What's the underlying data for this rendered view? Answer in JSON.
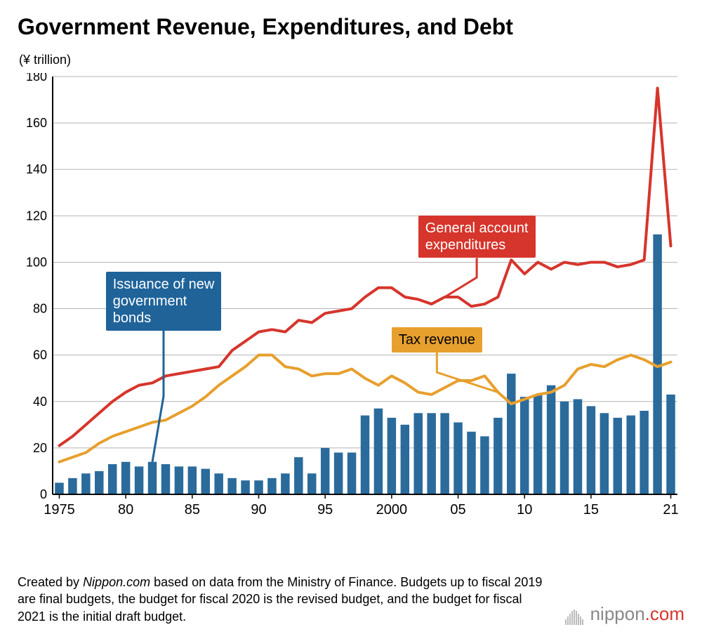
{
  "title": "Government Revenue, Expenditures, and Debt",
  "y_unit_label": "(¥ trillion)",
  "chart": {
    "type": "combo-bar-line",
    "background_color": "#ffffff",
    "grid_color": "#b5b5b5",
    "axis_color": "#000000",
    "ylim": [
      0,
      180
    ],
    "ytick_step": 20,
    "yticks": [
      0,
      20,
      40,
      60,
      80,
      100,
      120,
      140,
      160,
      180
    ],
    "years": [
      1975,
      1976,
      1977,
      1978,
      1979,
      1980,
      1981,
      1982,
      1983,
      1984,
      1985,
      1986,
      1987,
      1988,
      1989,
      1990,
      1991,
      1992,
      1993,
      1994,
      1995,
      1996,
      1997,
      1998,
      1999,
      2000,
      2001,
      2002,
      2003,
      2004,
      2005,
      2006,
      2007,
      2008,
      2009,
      2010,
      2011,
      2012,
      2013,
      2014,
      2015,
      2016,
      2017,
      2018,
      2019,
      2020,
      2021
    ],
    "xticks": [
      {
        "year": 1975,
        "label": "1975"
      },
      {
        "year": 1980,
        "label": "80"
      },
      {
        "year": 1985,
        "label": "85"
      },
      {
        "year": 1990,
        "label": "90"
      },
      {
        "year": 1995,
        "label": "95"
      },
      {
        "year": 2000,
        "label": "2000"
      },
      {
        "year": 2005,
        "label": "05"
      },
      {
        "year": 2010,
        "label": "10"
      },
      {
        "year": 2015,
        "label": "15"
      },
      {
        "year": 2021,
        "label": "21"
      }
    ],
    "series": {
      "bonds": {
        "label": "Issuance of new government bonds",
        "type": "bar",
        "color": "#2a6b9c",
        "bar_width_ratio": 0.66,
        "values": [
          5,
          7,
          9,
          10,
          13,
          14,
          12,
          14,
          13,
          12,
          12,
          11,
          9,
          7,
          6,
          6,
          7,
          9,
          16,
          9,
          20,
          18,
          18,
          34,
          37,
          33,
          30,
          35,
          35,
          35,
          31,
          27,
          25,
          33,
          52,
          42,
          43,
          47,
          40,
          41,
          38,
          35,
          33,
          34,
          36,
          112,
          43
        ]
      },
      "expenditures": {
        "label": "General account expenditures",
        "type": "line",
        "color": "#d6352c",
        "line_width": 4,
        "values": [
          21,
          25,
          30,
          35,
          40,
          44,
          47,
          48,
          51,
          52,
          53,
          54,
          55,
          62,
          66,
          70,
          71,
          70,
          75,
          74,
          78,
          79,
          80,
          85,
          89,
          89,
          85,
          84,
          82,
          85,
          85,
          81,
          82,
          85,
          101,
          95,
          100,
          97,
          100,
          99,
          100,
          100,
          98,
          99,
          101,
          175,
          107
        ]
      },
      "tax": {
        "label": "Tax revenue",
        "type": "line",
        "color": "#e7a02e",
        "line_width": 4,
        "values": [
          14,
          16,
          18,
          22,
          25,
          27,
          29,
          31,
          32,
          35,
          38,
          42,
          47,
          51,
          55,
          60,
          60,
          55,
          54,
          51,
          52,
          52,
          54,
          50,
          47,
          51,
          48,
          44,
          43,
          46,
          49,
          49,
          51,
          44,
          39,
          41,
          43,
          44,
          47,
          54,
          56,
          55,
          58,
          60,
          58,
          55,
          57
        ]
      }
    },
    "callouts": {
      "bonds": {
        "text": "Issuance of new\ngovernment\nbonds",
        "color": "#1f6399",
        "pos_year": 1978.5,
        "pos_value": 96,
        "pointer_to_year": 1982,
        "pointer_to_value": 14
      },
      "expenditures": {
        "text": "General account\nexpenditures",
        "color": "#d6352c",
        "pos_year": 2002,
        "pos_value": 120,
        "pointer_to_year": 2004,
        "pointer_to_value": 85
      },
      "tax": {
        "text": "Tax revenue",
        "color": "#e7a02e",
        "pos_year": 2000,
        "pos_value": 72,
        "pointer_to_year": 2008,
        "pointer_to_value": 44
      }
    }
  },
  "caption": {
    "prefix": "Created by ",
    "source_italic": "Nippon.com",
    "rest": " based on data from the Ministry of Finance. Budgets up to fiscal 2019 are final budgets, the budget for fiscal 2020 is the revised budget, and the budget for fiscal 2021 is the initial draft budget."
  },
  "logo": {
    "name": "nippon",
    "suffix": ".com"
  }
}
